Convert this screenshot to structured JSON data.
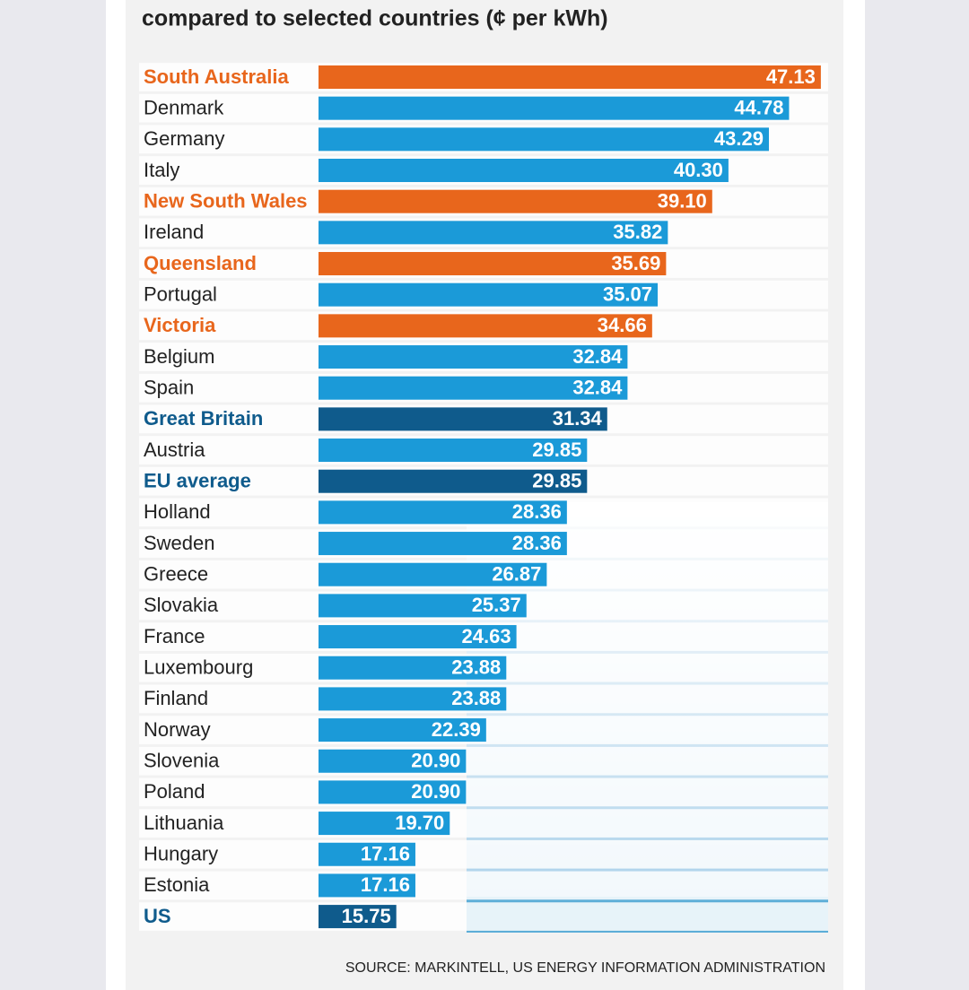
{
  "chart_data": {
    "type": "bar",
    "orientation": "horizontal",
    "title": "compared to selected countries (¢ per kWh)",
    "source": "SOURCE: MARKINTELL, US ENERGY INFORMATION ADMINISTRATION",
    "categories": [
      "South Australia",
      "Denmark",
      "Germany",
      "Italy",
      "New South Wales",
      "Ireland",
      "Queensland",
      "Portugal",
      "Victoria",
      "Belgium",
      "Spain",
      "Great Britain",
      "Austria",
      "EU average",
      "Holland",
      "Sweden",
      "Greece",
      "Slovakia",
      "France",
      "Luxembourg",
      "Finland",
      "Norway",
      "Slovenia",
      "Poland",
      "Lithuania",
      "Hungary",
      "Estonia",
      "US"
    ],
    "values": [
      47.13,
      44.78,
      43.29,
      40.3,
      39.1,
      35.82,
      35.69,
      35.07,
      34.66,
      32.84,
      32.84,
      31.34,
      29.85,
      29.85,
      28.36,
      28.36,
      26.87,
      25.37,
      24.63,
      23.88,
      23.88,
      22.39,
      20.9,
      20.9,
      19.7,
      17.16,
      17.16,
      15.75
    ],
    "value_labels": [
      "47.13",
      "44.78",
      "43.29",
      "40.30",
      "39.10",
      "35.82",
      "35.69",
      "35.07",
      "34.66",
      "32.84",
      "32.84",
      "31.34",
      "29.85",
      "29.85",
      "28.36",
      "28.36",
      "26.87",
      "25.37",
      "24.63",
      "23.88",
      "23.88",
      "22.39",
      "20.90",
      "20.90",
      "19.70",
      "17.16",
      "17.16",
      "15.75"
    ],
    "color": "#1b9ad8",
    "colors": [
      "#e8661c",
      "#1b9ad8",
      "#1b9ad8",
      "#1b9ad8",
      "#e8661c",
      "#1b9ad8",
      "#e8661c",
      "#1b9ad8",
      "#e8661c",
      "#1b9ad8",
      "#1b9ad8",
      "#0f5b8c",
      "#1b9ad8",
      "#0f5b8c",
      "#1b9ad8",
      "#1b9ad8",
      "#1b9ad8",
      "#1b9ad8",
      "#1b9ad8",
      "#1b9ad8",
      "#1b9ad8",
      "#1b9ad8",
      "#1b9ad8",
      "#1b9ad8",
      "#1b9ad8",
      "#1b9ad8",
      "#1b9ad8",
      "#0f5b8c"
    ],
    "xlim": [
      10,
      48
    ]
  }
}
